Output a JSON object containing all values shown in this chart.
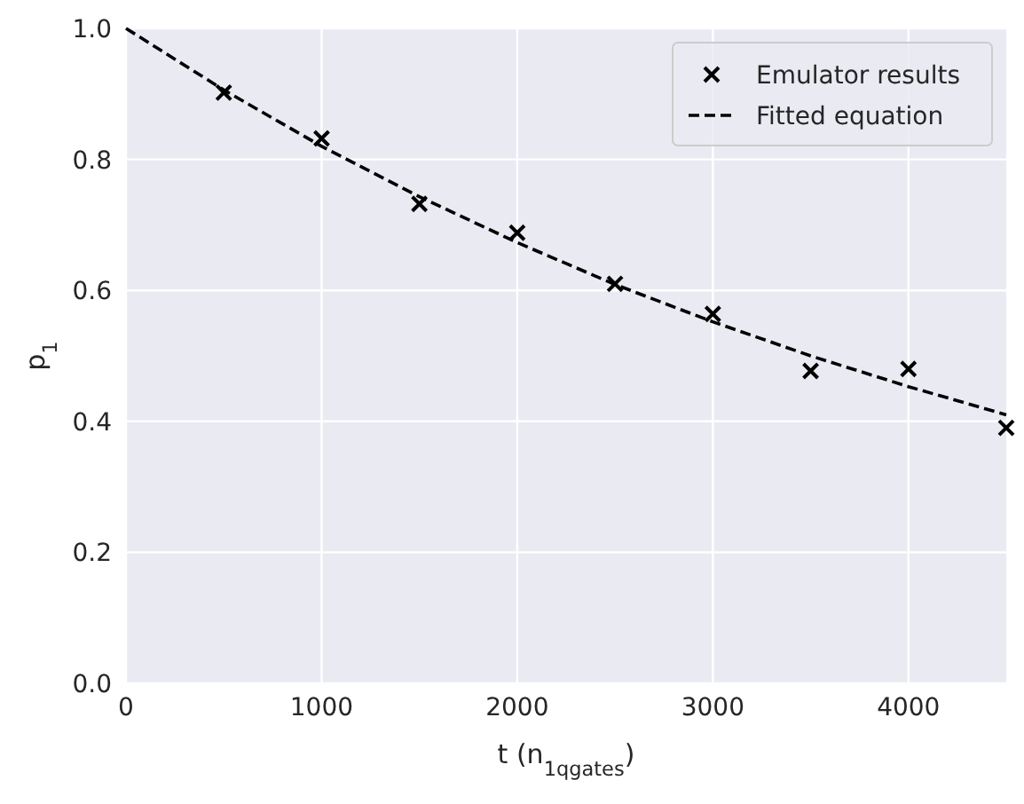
{
  "chart_data": {
    "type": "scatter",
    "xlabel": "t (n$_{1qgates}$)",
    "ylabel": "p$_{1}$",
    "xlim": [
      0,
      4500
    ],
    "ylim": [
      0,
      1
    ],
    "xticks": [
      0,
      1000,
      2000,
      3000,
      4000
    ],
    "yticks": [
      {
        "value": 0,
        "label": "0.0"
      },
      0.2,
      0.4,
      0.6,
      0.8,
      {
        "value": 1,
        "label": "1.0"
      }
    ],
    "grid": true,
    "legend": "top right",
    "series": [
      {
        "name": "Emulator results",
        "color": "#000000",
        "marker": "cross",
        "x": [
          500,
          1000,
          1500,
          2000,
          2500,
          3000,
          3500,
          4000,
          4500
        ],
        "values": [
          0.902,
          0.832,
          0.732,
          0.688,
          0.61,
          0.564,
          0.477,
          0.48,
          0.39
        ]
      },
      {
        "name": "Fitted equation",
        "type": "line",
        "color": "#000000",
        "line_style": "dashed",
        "x": [
          0,
          500,
          1000,
          1500,
          2000,
          2500,
          3000,
          3500,
          4000,
          4500
        ],
        "values": [
          1,
          0.906,
          0.82,
          0.743,
          0.673,
          0.609,
          0.552,
          0.5,
          0.453,
          0.41
        ]
      }
    ]
  }
}
